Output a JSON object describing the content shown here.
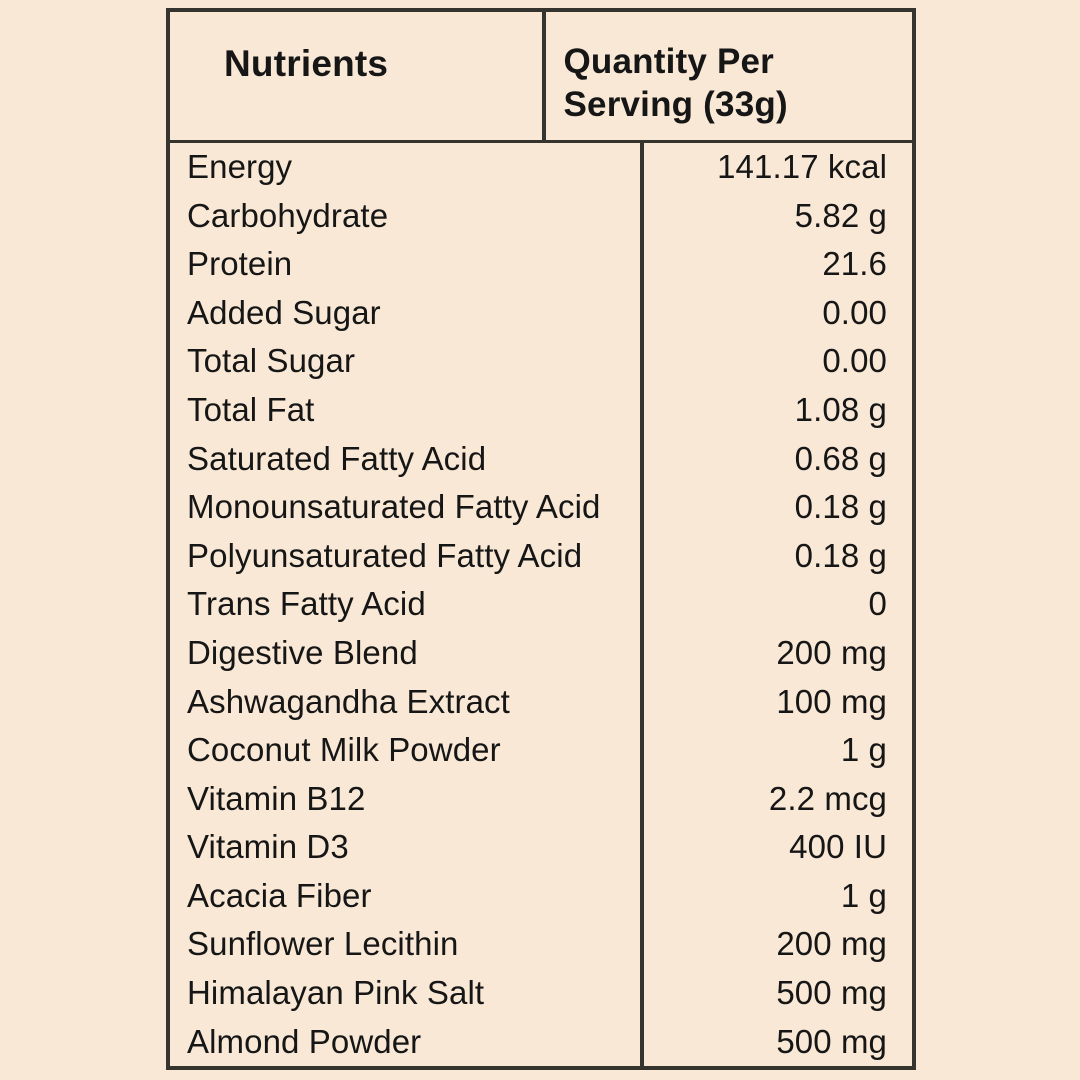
{
  "page": {
    "background_color": "#f8e8d5",
    "border_color": "#36342e",
    "text_color": "#161616"
  },
  "table": {
    "header": {
      "nutrients_label": "Nutrients",
      "quantity_label": "Quantity Per Serving (33g)"
    },
    "rows": [
      {
        "name": "Energy",
        "quantity": "141.17 kcal"
      },
      {
        "name": "Carbohydrate",
        "quantity": "5.82 g"
      },
      {
        "name": "Protein",
        "quantity": "21.6"
      },
      {
        "name": "Added Sugar",
        "quantity": "0.00"
      },
      {
        "name": "Total Sugar",
        "quantity": "0.00"
      },
      {
        "name": "Total Fat",
        "quantity": "1.08 g"
      },
      {
        "name": "Saturated Fatty Acid",
        "quantity": "0.68 g"
      },
      {
        "name": "Monounsaturated Fatty Acid",
        "quantity": "0.18 g"
      },
      {
        "name": "Polyunsaturated Fatty Acid",
        "quantity": "0.18 g"
      },
      {
        "name": "Trans Fatty Acid",
        "quantity": "0"
      },
      {
        "name": "Digestive Blend",
        "quantity": "200 mg"
      },
      {
        "name": "Ashwagandha Extract",
        "quantity": "100 mg"
      },
      {
        "name": "Coconut Milk Powder",
        "quantity": "1 g"
      },
      {
        "name": "Vitamin B12",
        "quantity": "2.2 mcg"
      },
      {
        "name": "Vitamin D3",
        "quantity": "400 IU"
      },
      {
        "name": "Acacia Fiber",
        "quantity": "1 g"
      },
      {
        "name": "Sunflower Lecithin",
        "quantity": "200 mg"
      },
      {
        "name": "Himalayan Pink Salt",
        "quantity": "500 mg"
      },
      {
        "name": "Almond Powder",
        "quantity": "500 mg"
      }
    ]
  }
}
